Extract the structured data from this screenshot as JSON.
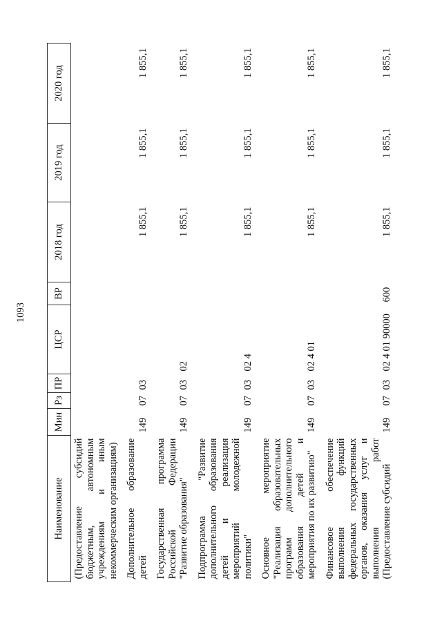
{
  "page_number": "1093",
  "columns": {
    "name": "Наименование",
    "min": "Мин",
    "rz": "Рз",
    "pr": "ПР",
    "csr": "ЦСР",
    "vr": "ВР",
    "y2018": "2018 год",
    "y2019": "2019 год",
    "y2020": "2020 год"
  },
  "rows": [
    {
      "name": "(Предоставление субсидий бюджетным, автономным учреждениям и иным некоммерческим организациям)",
      "min": "",
      "rz": "",
      "pr": "",
      "csr": "",
      "vr": "",
      "y2018": "",
      "y2019": "",
      "y2020": ""
    },
    {
      "name": "Дополнительное образование детей",
      "min": "149",
      "rz": "07",
      "pr": "03",
      "csr": "",
      "vr": "",
      "y2018": "1 855,1",
      "y2019": "1 855,1",
      "y2020": "1 855,1"
    },
    {
      "name": "Государственная программа Российской Федерации \"Развитие образования\"",
      "min": "149",
      "rz": "07",
      "pr": "03",
      "csr": "02",
      "vr": "",
      "y2018": "1 855,1",
      "y2019": "1 855,1",
      "y2020": "1 855,1"
    },
    {
      "name": "Подпрограмма \"Развитие дополнительного образования детей и реализация мероприятий молодежной политики\"",
      "min": "149",
      "rz": "07",
      "pr": "03",
      "csr": "02 4",
      "vr": "",
      "y2018": "1 855,1",
      "y2019": "1 855,1",
      "y2020": "1 855,1"
    },
    {
      "name": "Основное мероприятие \"Реализация образовательных программ дополнительного образования детей и мероприятия по их развитию\"",
      "min": "149",
      "rz": "07",
      "pr": "03",
      "csr": "02 4 01",
      "vr": "",
      "y2018": "1 855,1",
      "y2019": "1 855,1",
      "y2020": "1 855,1"
    },
    {
      "name": "Финансовое обеспечение выполнения функций федеральных государственных органов, оказания услуг и выполнения работ (Предоставление субсидий",
      "min": "149",
      "rz": "07",
      "pr": "03",
      "csr": "02 4 01 90000",
      "vr": "600",
      "y2018": "1 855,1",
      "y2019": "1 855,1",
      "y2020": "1 855,1"
    }
  ]
}
